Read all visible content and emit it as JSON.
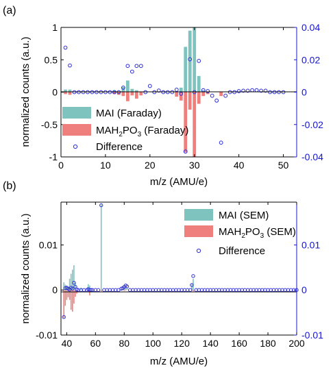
{
  "chart_data": [
    {
      "type": "bar",
      "panel_label": "(a)",
      "xlabel": "m/z (AMU/e)",
      "ylabel": "normalized counts (a.u.)",
      "xlim": [
        0,
        53
      ],
      "ylim": [
        -1,
        1
      ],
      "y2lim": [
        -0.04,
        0.04
      ],
      "xticks": [
        0,
        10,
        20,
        30,
        40,
        50
      ],
      "yticks": [
        -1,
        -0.5,
        0,
        0.5,
        1
      ],
      "yticklabels": [
        "-1",
        "-0.5",
        "0",
        "0.5",
        "1"
      ],
      "y2ticks": [
        -0.04,
        -0.02,
        0,
        0.02,
        0.04
      ],
      "y2ticklabels": [
        "-0.04",
        "-0.02",
        "0",
        "0.02",
        "0.04"
      ],
      "legend": {
        "position": "lower-left",
        "entries": [
          {
            "label": "MAI (Faraday)",
            "kind": "bar",
            "color": "#7fc3bf"
          },
          {
            "label_main": "MAH",
            "sub1": "2",
            "mid": "PO",
            "sub2": "3",
            "label_tail": " (Faraday)",
            "kind": "bar",
            "color": "#ef7f7c"
          },
          {
            "label": "Difference",
            "kind": "marker",
            "color": "#2a2adb"
          }
        ]
      },
      "series": [
        {
          "name": "MAI (Faraday)",
          "color": "#7fc3bf",
          "x": [
            1,
            2,
            12,
            14,
            15,
            16,
            17,
            27,
            28,
            29,
            30,
            31,
            32
          ],
          "y": [
            0.04,
            0.04,
            0.03,
            0.08,
            0.18,
            0.05,
            0.03,
            0.07,
            0.7,
            0.95,
            1.0,
            0.25,
            0.03
          ]
        },
        {
          "name": "MAH2PO3 (Faraday)",
          "color": "#ef7f7c",
          "x": [
            1,
            2,
            12,
            13,
            14,
            15,
            16,
            17,
            18,
            26,
            27,
            28,
            29,
            30,
            31,
            32,
            33,
            36
          ],
          "y": [
            -0.03,
            -0.04,
            -0.03,
            -0.04,
            -0.06,
            -0.14,
            -0.05,
            -0.1,
            -0.05,
            -0.07,
            -0.13,
            -0.93,
            -0.27,
            -1.0,
            -0.18,
            -0.06,
            -0.03,
            -0.06
          ]
        },
        {
          "name": "Difference",
          "color": "#2a2adb",
          "axis": "right",
          "x": [
            1,
            2,
            3,
            4,
            5,
            6,
            7,
            8,
            9,
            10,
            11,
            12,
            13,
            14,
            15,
            16,
            17,
            18,
            19,
            20,
            21,
            22,
            23,
            24,
            25,
            26,
            27,
            28,
            29,
            30,
            31,
            32,
            33,
            34,
            35,
            36,
            37,
            38,
            39,
            40,
            41,
            42,
            43,
            44,
            45,
            46,
            47,
            48,
            49,
            50
          ],
          "y": [
            0.0275,
            0.0165,
            0,
            0,
            0,
            0,
            0,
            0,
            0,
            0,
            0,
            0,
            0,
            0.0028,
            0.0162,
            0.0127,
            0.0162,
            0.0162,
            0,
            0.0038,
            0,
            0.001,
            0,
            0,
            0,
            0.0015,
            -0.001,
            -0.0367,
            0.0203,
            0,
            0.0193,
            0.0012,
            0.0006,
            -0.0022,
            -0.0052,
            -0.0312,
            -0.0022,
            0,
            0,
            0.0006,
            0.0009,
            0.0009,
            0.0012,
            0.0012,
            0.0009,
            0.0009,
            0,
            0,
            0,
            0
          ]
        }
      ]
    },
    {
      "type": "bar",
      "panel_label": "(b)",
      "xlabel": "m/z (AMU/e)",
      "ylabel": "normalized counts (a.u.)",
      "xlim": [
        36,
        200
      ],
      "ylim": [
        -0.01,
        0.0195
      ],
      "y2lim": [
        -0.01,
        0.0195
      ],
      "xticks": [
        40,
        60,
        80,
        100,
        120,
        140,
        160,
        180,
        200
      ],
      "yticks": [
        -0.01,
        0,
        0.01
      ],
      "yticklabels": [
        "-0.01",
        "0",
        "0.01"
      ],
      "y2ticks": [
        -0.01,
        0,
        0.01
      ],
      "y2ticklabels": [
        "-0.01",
        "0",
        "0.01"
      ],
      "legend": {
        "position": "top-right",
        "entries": [
          {
            "label": "MAI (SEM)",
            "kind": "bar",
            "color": "#7fc3bf"
          },
          {
            "label_main": "MAH",
            "sub1": "2",
            "mid": "PO",
            "sub2": "3",
            "label_tail": " (SEM)",
            "kind": "bar",
            "color": "#ef7f7c"
          },
          {
            "label": "Difference",
            "kind": "marker",
            "color": "#2a2adb"
          }
        ]
      },
      "series": [
        {
          "name": "MAI (SEM)",
          "color": "#7fc3bf",
          "x": [
            38,
            39,
            40,
            41,
            42,
            43,
            44,
            45,
            46,
            50,
            55,
            56,
            64,
            78,
            79,
            80,
            81,
            82,
            127,
            128
          ],
          "y": [
            0.0017,
            0.0012,
            0.001,
            0.0006,
            0.0025,
            0.0036,
            0.0045,
            0.0055,
            0.0016,
            0.0005,
            0.0013,
            0.001,
            0.019,
            0.0002,
            0.0002,
            0.0006,
            0.0005,
            0.0004,
            0.0013,
            0.0025
          ]
        },
        {
          "name": "MAH2PO3 (SEM)",
          "color": "#ef7f7c",
          "x": [
            38,
            39,
            40,
            41,
            42,
            43,
            44,
            45,
            46,
            47,
            55,
            56,
            64,
            80,
            81,
            127,
            128
          ],
          "y": [
            -0.0062,
            -0.0035,
            -0.0022,
            -0.0016,
            -0.0022,
            -0.0044,
            -0.0048,
            -0.003,
            -0.0015,
            -0.0008,
            -0.0003,
            -0.0012,
            -0.0003,
            -0.0002,
            -0.0001,
            -0.0001,
            -0.0003
          ]
        },
        {
          "name": "Difference",
          "color": "#2a2adb",
          "axis": "right",
          "x": [
            38,
            39,
            40,
            41,
            42,
            43,
            44,
            45,
            46,
            47,
            48,
            50,
            52,
            54,
            55,
            56,
            57,
            58,
            60,
            62,
            64,
            66,
            68,
            70,
            72,
            74,
            76,
            78,
            79,
            80,
            81,
            82,
            84,
            86,
            88,
            90,
            92,
            94,
            96,
            98,
            100,
            102,
            104,
            106,
            108,
            110,
            112,
            114,
            116,
            118,
            120,
            122,
            124,
            126,
            127,
            128,
            130,
            132,
            134,
            136,
            138,
            140,
            142,
            144,
            146,
            148,
            150,
            152,
            154,
            156,
            158,
            160,
            162,
            164,
            166,
            168,
            170,
            172,
            174,
            176,
            178,
            180,
            182,
            184,
            186,
            188,
            190,
            192,
            194,
            196,
            198,
            200
          ],
          "y": [
            -0.006,
            0.0004,
            0.0005,
            0.0003,
            0.0001,
            0.0005,
            0.0003,
            0.0016,
            0.0007,
            0.0001,
            0,
            0,
            0,
            0,
            0.0002,
            0,
            0,
            0,
            0,
            0,
            0.0188,
            0,
            0,
            0,
            0,
            0,
            0,
            0.0003,
            0.0004,
            0.0007,
            0.001,
            0.0008,
            0,
            0,
            0,
            0,
            0,
            0,
            0,
            0,
            0,
            0,
            0,
            0,
            0,
            0,
            0,
            0,
            0,
            0,
            0,
            0,
            0,
            0,
            0.0011,
            0.0031,
            0,
            0,
            0,
            0,
            0,
            0,
            0,
            0,
            0,
            0,
            0,
            0,
            0,
            0,
            0,
            0,
            0,
            0,
            0,
            0,
            0,
            0,
            0,
            0,
            0,
            0,
            0,
            0,
            0,
            0,
            0,
            0,
            0,
            0,
            0,
            0
          ]
        }
      ]
    }
  ],
  "colors": {
    "left_axis": "#000000",
    "right_axis": "#1414d6"
  }
}
